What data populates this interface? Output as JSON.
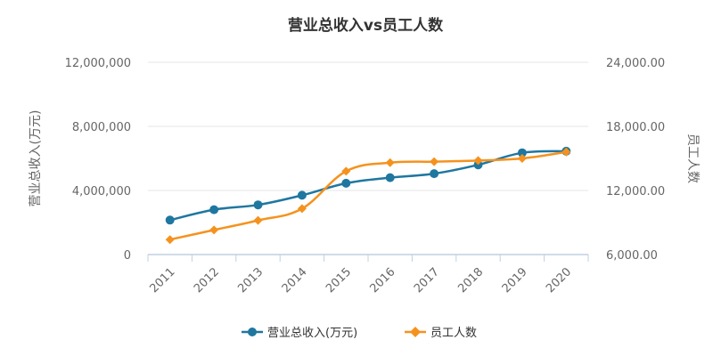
{
  "chart_data": {
    "type": "line",
    "title": "营业总收入vs员工人数",
    "categories": [
      "2011",
      "2012",
      "2013",
      "2014",
      "2015",
      "2016",
      "2017",
      "2018",
      "2019",
      "2020"
    ],
    "y_left": {
      "label": "营业总收入(万元)",
      "range": [
        0,
        12000000
      ],
      "ticks": [
        "0",
        "4,000,000",
        "8,000,000",
        "12,000,000"
      ],
      "tick_values": [
        0,
        4000000,
        8000000,
        12000000
      ]
    },
    "y_right": {
      "label": "员工人数",
      "range": [
        6000,
        24000
      ],
      "ticks": [
        "6,000.00",
        "12,000.00",
        "18,000.00",
        "24,000.00"
      ],
      "tick_values": [
        6000,
        12000,
        18000,
        24000
      ]
    },
    "series": [
      {
        "name": "营业总收入(万元)",
        "axis": "left",
        "marker": "circle",
        "color": "#1f77a0",
        "values": [
          2150000,
          2800000,
          3100000,
          3700000,
          4450000,
          4800000,
          5050000,
          5600000,
          6350000,
          6450000
        ]
      },
      {
        "name": "员工人数",
        "axis": "right",
        "marker": "diamond",
        "color": "#f5921e",
        "values": [
          7400,
          8300,
          9200,
          10300,
          13800,
          14600,
          14700,
          14800,
          15000,
          15600
        ]
      }
    ],
    "grid": true,
    "legend_position": "bottom-center"
  }
}
